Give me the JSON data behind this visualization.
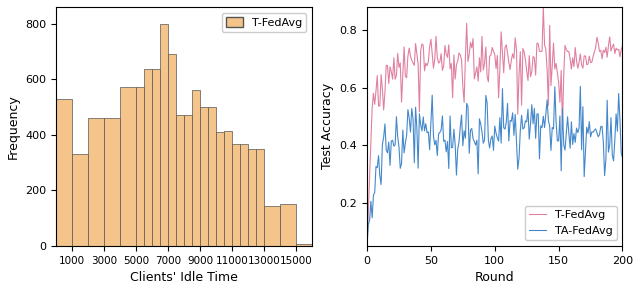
{
  "hist_values": [
    530,
    330,
    460,
    460,
    570,
    570,
    635,
    635,
    800,
    690,
    470,
    470,
    560,
    500,
    500,
    410,
    415,
    365,
    365,
    350,
    350,
    145,
    150,
    5
  ],
  "hist_bins": [
    0,
    1000,
    2000,
    3000,
    4000,
    5000,
    5500,
    6000,
    6500,
    7000,
    7500,
    8000,
    8500,
    9000,
    9500,
    10000,
    10500,
    11000,
    11500,
    12000,
    12500,
    13000,
    14000,
    15000,
    16000
  ],
  "bar_color": "#F5C48A",
  "bar_edge_color": "#555555",
  "hist_xlabel": "Clients' Idle Time",
  "hist_ylabel": "Frequency",
  "hist_xticks": [
    1000,
    3000,
    5000,
    7000,
    9000,
    11000,
    13000,
    15000
  ],
  "hist_yticks": [
    0,
    200,
    400,
    600,
    800
  ],
  "hist_ylim": [
    0,
    860
  ],
  "hist_xlim": [
    0,
    16000
  ],
  "hist_legend": "T-FedAvg",
  "line_xlim": [
    0,
    200
  ],
  "line_ylim": [
    0.05,
    0.88
  ],
  "line_xlabel": "Round",
  "line_ylabel": "Test Accuracy",
  "line_yticks": [
    0.2,
    0.4,
    0.6,
    0.8
  ],
  "line_xticks": [
    0,
    50,
    100,
    150,
    200
  ],
  "tfedavg_color": "#E080A0",
  "tafedavg_color": "#4488CC",
  "legend_labels": [
    "T-FedAvg",
    "TA-FedAvg"
  ]
}
